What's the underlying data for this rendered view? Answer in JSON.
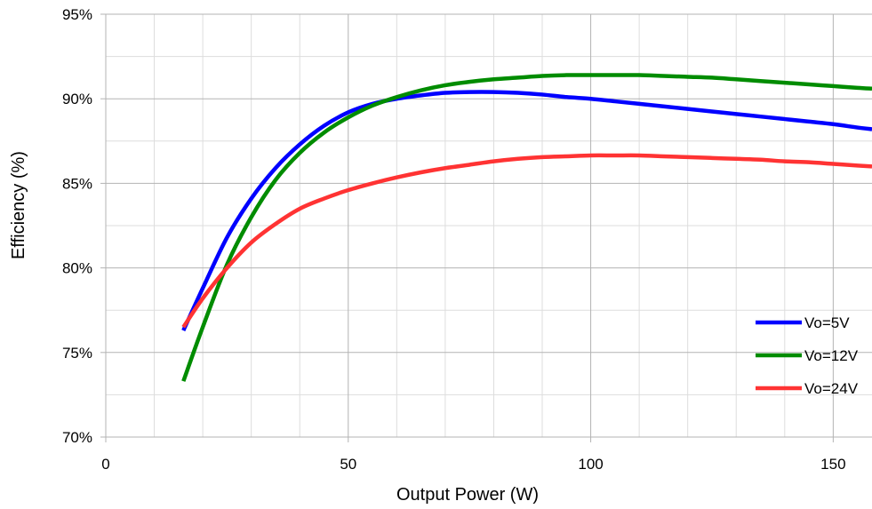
{
  "chart_data": {
    "type": "line",
    "xlabel": "Output Power (W)",
    "ylabel": "Efficiency (%)",
    "xlim": [
      0,
      158
    ],
    "ylim": [
      70,
      95
    ],
    "x_ticks": [
      0,
      50,
      100,
      150
    ],
    "x_tick_labels": [
      "0",
      "50",
      "100",
      "150"
    ],
    "y_ticks": [
      70,
      75,
      80,
      85,
      90,
      95
    ],
    "y_tick_labels": [
      "70%",
      "75%",
      "80%",
      "85%",
      "90%",
      "95%"
    ],
    "grid": true,
    "legend_position": "right",
    "series": [
      {
        "name": "Vo=5V",
        "color": "#0000ff",
        "x": [
          16,
          20,
          25,
          30,
          35,
          40,
          45,
          50,
          55,
          60,
          65,
          70,
          75,
          80,
          85,
          90,
          95,
          100,
          105,
          110,
          115,
          120,
          125,
          130,
          135,
          140,
          145,
          150,
          155,
          158
        ],
        "y": [
          76.3,
          78.8,
          81.8,
          84.1,
          85.9,
          87.3,
          88.4,
          89.2,
          89.7,
          90.0,
          90.2,
          90.35,
          90.4,
          90.4,
          90.35,
          90.25,
          90.1,
          90.0,
          89.85,
          89.7,
          89.55,
          89.4,
          89.25,
          89.1,
          88.95,
          88.8,
          88.65,
          88.5,
          88.3,
          88.2
        ]
      },
      {
        "name": "Vo=12V",
        "color": "#008c00",
        "x": [
          16,
          20,
          25,
          30,
          35,
          40,
          45,
          50,
          55,
          60,
          65,
          70,
          75,
          80,
          85,
          90,
          95,
          100,
          105,
          110,
          115,
          120,
          125,
          130,
          135,
          140,
          145,
          150,
          155,
          158
        ],
        "y": [
          73.3,
          76.5,
          80.2,
          83.0,
          85.2,
          86.8,
          88.0,
          88.9,
          89.6,
          90.1,
          90.5,
          90.8,
          91.0,
          91.15,
          91.25,
          91.35,
          91.4,
          91.4,
          91.4,
          91.4,
          91.35,
          91.3,
          91.25,
          91.15,
          91.05,
          90.95,
          90.85,
          90.75,
          90.65,
          90.6
        ]
      },
      {
        "name": "Vo=24V",
        "color": "#ff3333",
        "x": [
          16,
          20,
          25,
          30,
          35,
          40,
          45,
          50,
          55,
          60,
          65,
          70,
          75,
          80,
          85,
          90,
          95,
          100,
          105,
          110,
          115,
          120,
          125,
          130,
          135,
          140,
          145,
          150,
          155,
          158
        ],
        "y": [
          76.5,
          78.2,
          80.0,
          81.5,
          82.6,
          83.5,
          84.1,
          84.6,
          85.0,
          85.35,
          85.65,
          85.9,
          86.1,
          86.3,
          86.45,
          86.55,
          86.6,
          86.65,
          86.65,
          86.65,
          86.6,
          86.55,
          86.5,
          86.45,
          86.4,
          86.3,
          86.25,
          86.15,
          86.05,
          86.0
        ]
      }
    ]
  }
}
